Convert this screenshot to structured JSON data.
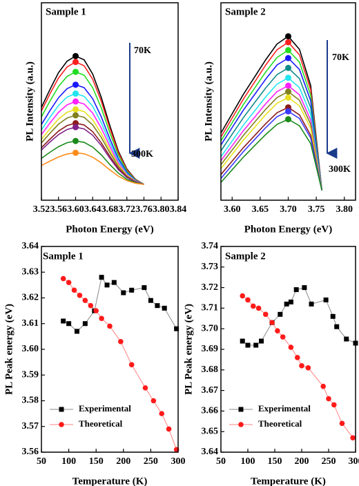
{
  "chart_data": [
    {
      "type": "line",
      "title": "Sample 1",
      "xlabel": "Photon Energy (eV)",
      "ylabel": "PL Intensity (a.u.)",
      "annotations": [
        "70K",
        "300K"
      ],
      "peak_markers": true,
      "x": [
        3.52,
        3.54,
        3.56,
        3.58,
        3.6,
        3.62,
        3.64,
        3.66,
        3.68,
        3.7,
        3.72,
        3.74,
        3.76
      ],
      "xlim": [
        3.52,
        3.84
      ],
      "xticks": [
        3.52,
        3.56,
        {
          "value": 3.6,
          "label": "3.60"
        },
        3.64,
        3.68,
        3.72,
        3.76,
        {
          "value": 3.8,
          "label": "3.80"
        },
        3.84
      ],
      "ylim": [
        0,
        1
      ],
      "series": [
        {
          "color": "#000000",
          "values": [
            0.47,
            0.561,
            0.646,
            0.704,
            0.73,
            0.711,
            0.639,
            0.522,
            0.379,
            0.249,
            0.158,
            0.106,
            0.08
          ]
        },
        {
          "color": "#ff2020",
          "values": [
            0.452,
            0.539,
            0.619,
            0.675,
            0.7,
            0.681,
            0.613,
            0.502,
            0.365,
            0.241,
            0.154,
            0.105,
            0.08
          ]
        },
        {
          "color": "#22dd22",
          "values": [
            0.422,
            0.502,
            0.576,
            0.627,
            0.65,
            0.633,
            0.57,
            0.468,
            0.342,
            0.228,
            0.148,
            0.103,
            0.08
          ]
        },
        {
          "color": "#1a1aff",
          "values": [
            0.383,
            0.454,
            0.519,
            0.565,
            0.585,
            0.57,
            0.514,
            0.423,
            0.312,
            0.211,
            0.141,
            0.1,
            0.08
          ]
        },
        {
          "color": "#22e5f0",
          "values": [
            0.356,
            0.42,
            0.48,
            0.522,
            0.54,
            0.526,
            0.476,
            0.393,
            0.292,
            0.2,
            0.135,
            0.098,
            0.08
          ]
        },
        {
          "color": "#ff22ff",
          "values": [
            0.332,
            0.391,
            0.445,
            0.483,
            0.5,
            0.487,
            0.441,
            0.366,
            0.273,
            0.189,
            0.13,
            0.097,
            0.08
          ]
        },
        {
          "color": "#e8e020",
          "values": [
            0.308,
            0.361,
            0.411,
            0.445,
            0.46,
            0.449,
            0.407,
            0.338,
            0.255,
            0.179,
            0.126,
            0.095,
            0.08
          ]
        },
        {
          "color": "#808020",
          "values": [
            0.29,
            0.339,
            0.385,
            0.416,
            0.43,
            0.42,
            0.381,
            0.318,
            0.241,
            0.171,
            0.122,
            0.094,
            0.08
          ]
        },
        {
          "color": "#8b1a1a",
          "values": [
            0.266,
            0.309,
            0.35,
            0.378,
            0.39,
            0.381,
            0.347,
            0.291,
            0.223,
            0.161,
            0.117,
            0.092,
            0.08
          ]
        },
        {
          "color": "#80208a",
          "values": [
            0.254,
            0.295,
            0.332,
            0.358,
            0.37,
            0.361,
            0.329,
            0.277,
            0.213,
            0.155,
            0.115,
            0.092,
            0.08
          ]
        },
        {
          "color": "#1a8a1a",
          "values": [
            0.212,
            0.243,
            0.271,
            0.291,
            0.3,
            0.293,
            0.269,
            0.23,
            0.181,
            0.137,
            0.106,
            0.089,
            0.08
          ]
        },
        {
          "color": "#ff8c1a",
          "values": [
            0.176,
            0.198,
            0.219,
            0.234,
            0.24,
            0.235,
            0.218,
            0.189,
            0.154,
            0.122,
            0.099,
            0.086,
            0.08
          ]
        }
      ]
    },
    {
      "type": "line",
      "title": "Sample 2",
      "xlabel": "Photon Energy (eV)",
      "ylabel": "PL Intensity (a.u.)",
      "annotations": [
        "70K",
        "300K"
      ],
      "peak_markers": true,
      "x": [
        3.58,
        3.6,
        3.62,
        3.64,
        3.66,
        3.68,
        3.7,
        3.72,
        3.74,
        3.76
      ],
      "xlim": [
        3.58,
        3.82
      ],
      "xticks": [
        {
          "value": 3.6,
          "label": "3.60"
        },
        3.65,
        {
          "value": 3.7,
          "label": "3.70"
        },
        3.75,
        {
          "value": 3.8,
          "label": "3.80"
        }
      ],
      "ylim": [
        0,
        1
      ],
      "series": [
        {
          "color": "#000000",
          "values": [
            0.34,
            0.438,
            0.536,
            0.624,
            0.712,
            0.791,
            0.83,
            0.764,
            0.581,
            0.05
          ]
        },
        {
          "color": "#ff2020",
          "values": [
            0.32,
            0.416,
            0.512,
            0.598,
            0.685,
            0.762,
            0.8,
            0.736,
            0.56,
            0.05
          ]
        },
        {
          "color": "#22dd22",
          "values": [
            0.3,
            0.392,
            0.484,
            0.567,
            0.65,
            0.723,
            0.76,
            0.699,
            0.532,
            0.05
          ]
        },
        {
          "color": "#1a1aff",
          "values": [
            0.28,
            0.368,
            0.456,
            0.535,
            0.614,
            0.685,
            0.72,
            0.662,
            0.504,
            0.05
          ]
        },
        {
          "color": "#108a8a",
          "values": [
            0.25,
            0.334,
            0.418,
            0.494,
            0.569,
            0.636,
            0.67,
            0.616,
            0.469,
            0.05
          ]
        },
        {
          "color": "#22e5f0",
          "values": [
            0.22,
            0.3,
            0.38,
            0.452,
            0.524,
            0.588,
            0.62,
            0.57,
            0.434,
            0.05
          ]
        },
        {
          "color": "#ff22ff",
          "values": [
            0.2,
            0.276,
            0.352,
            0.42,
            0.489,
            0.55,
            0.58,
            0.534,
            0.406,
            0.05
          ]
        },
        {
          "color": "#808020",
          "values": [
            0.18,
            0.254,
            0.328,
            0.395,
            0.461,
            0.52,
            0.55,
            0.506,
            0.385,
            0.05
          ]
        },
        {
          "color": "#e8e020",
          "values": [
            0.16,
            0.232,
            0.304,
            0.369,
            0.434,
            0.491,
            0.52,
            0.478,
            0.364,
            0.05
          ]
        },
        {
          "color": "#8b1a1a",
          "values": [
            0.13,
            0.198,
            0.266,
            0.327,
            0.388,
            0.443,
            0.47,
            0.432,
            0.329,
            0.05
          ]
        },
        {
          "color": "#3a3aff",
          "values": [
            0.11,
            0.178,
            0.246,
            0.307,
            0.368,
            0.423,
            0.45,
            0.414,
            0.315,
            0.05
          ]
        },
        {
          "color": "#1a8a1a",
          "values": [
            0.09,
            0.154,
            0.218,
            0.276,
            0.333,
            0.384,
            0.41,
            0.377,
            0.287,
            0.05
          ]
        }
      ]
    },
    {
      "type": "line",
      "title": "Sample 1",
      "xlabel": "Temperature (K)",
      "ylabel": "PL Peak energy (eV)",
      "legend": "lower left",
      "xlim": [
        50,
        300
      ],
      "xticks": [
        50,
        100,
        150,
        200,
        250,
        300
      ],
      "ylim": [
        3.56,
        3.64
      ],
      "yticks": [
        3.56,
        3.57,
        3.58,
        3.59,
        {
          "value": 3.6,
          "label": "3.60"
        },
        3.61,
        3.62,
        3.63,
        3.64
      ],
      "series": [
        {
          "name": "Experimental",
          "color": "#000000",
          "line_color": "#888888",
          "marker": "square",
          "x": [
            90,
            100,
            115,
            130,
            147,
            160,
            170,
            183,
            200,
            215,
            238,
            250,
            262,
            275,
            297
          ],
          "values": [
            3.611,
            3.61,
            3.607,
            3.61,
            3.615,
            3.628,
            3.625,
            3.626,
            3.622,
            3.623,
            3.624,
            3.619,
            3.617,
            3.616,
            3.608
          ]
        },
        {
          "name": "Theoretical",
          "color": "#ff1a1a",
          "line_color": "#ff8080",
          "marker": "circle",
          "x": [
            90,
            100,
            110,
            120,
            130,
            140,
            150,
            160,
            175,
            195,
            215,
            240,
            255,
            270,
            283,
            297
          ],
          "values": [
            3.6275,
            3.626,
            3.623,
            3.621,
            3.619,
            3.617,
            3.615,
            3.612,
            3.609,
            3.603,
            3.594,
            3.585,
            3.58,
            3.575,
            3.569,
            3.561
          ]
        }
      ]
    },
    {
      "type": "line",
      "title": "Sample 2",
      "xlabel": "Temperature (K)",
      "ylabel": "PL Peak energy (eV)",
      "legend": "lower left",
      "xlim": [
        50,
        300
      ],
      "xticks": [
        50,
        100,
        150,
        200,
        250,
        300
      ],
      "ylim": [
        3.64,
        3.74
      ],
      "yticks": [
        3.64,
        3.65,
        3.66,
        3.67,
        3.68,
        3.69,
        {
          "value": 3.7,
          "label": "3.70"
        },
        3.71,
        3.72,
        3.73,
        3.74
      ],
      "series": [
        {
          "name": "Experimental",
          "color": "#000000",
          "line_color": "#888888",
          "marker": "square",
          "x": [
            90,
            100,
            115,
            125,
            145,
            160,
            172,
            180,
            190,
            205,
            218,
            245,
            258,
            265,
            283,
            300
          ],
          "values": [
            3.694,
            3.692,
            3.692,
            3.694,
            3.703,
            3.707,
            3.712,
            3.713,
            3.719,
            3.72,
            3.712,
            3.714,
            3.706,
            3.701,
            3.695,
            3.693
          ]
        },
        {
          "name": "Theoretical",
          "color": "#ff1a1a",
          "line_color": "#ff8080",
          "marker": "circle",
          "x": [
            90,
            100,
            110,
            120,
            133,
            145,
            155,
            165,
            180,
            192,
            200,
            212,
            240,
            250,
            260,
            275,
            295
          ],
          "values": [
            3.716,
            3.714,
            3.711,
            3.71,
            3.707,
            3.703,
            3.699,
            3.696,
            3.691,
            3.686,
            3.682,
            3.681,
            3.672,
            3.666,
            3.663,
            3.654,
            3.647
          ]
        }
      ]
    }
  ]
}
